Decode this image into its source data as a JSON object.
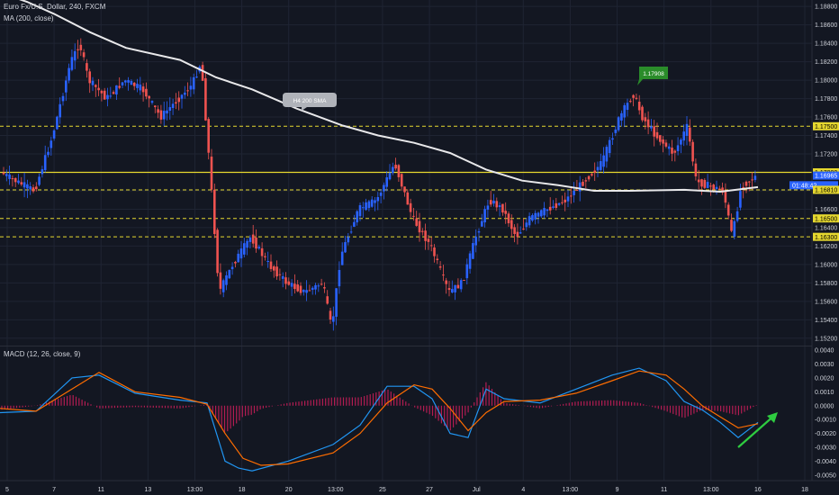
{
  "header": {
    "symbol_title": "Euro Fx/U.S. Dollar, 240, FXCM",
    "ma_label": "MA (200, close)",
    "macd_label": "MACD (12, 26, close, 9)"
  },
  "annotations": {
    "sma_callout": "H4 200 SMA",
    "high_callout": "1.17908"
  },
  "price_axis": {
    "ticks": [
      "1.18800",
      "1.18600",
      "1.18400",
      "1.18200",
      "1.18000",
      "1.17800",
      "1.17600",
      "1.17400",
      "1.17200",
      "1.17000",
      "1.16800",
      "1.16600",
      "1.16400",
      "1.16200",
      "1.16000",
      "1.15800",
      "1.15600",
      "1.15400",
      "1.15200"
    ],
    "tick_values": [
      1.188,
      1.186,
      1.184,
      1.182,
      1.18,
      1.178,
      1.176,
      1.174,
      1.172,
      1.17,
      1.168,
      1.166,
      1.164,
      1.162,
      1.16,
      1.158,
      1.156,
      1.154,
      1.152
    ],
    "tags": [
      {
        "label": "1.17500",
        "value": 1.175,
        "style": "yellow"
      },
      {
        "label": "1.17000",
        "value": 1.17,
        "style": "yellow"
      },
      {
        "label": "1.16965",
        "value": 1.16965,
        "style": "price"
      },
      {
        "label": "01:48:42",
        "value": 1.1686,
        "style": "timer"
      },
      {
        "label": "1.16810",
        "value": 1.1681,
        "style": "yellow"
      },
      {
        "label": "1.16500",
        "value": 1.165,
        "style": "yellow"
      },
      {
        "label": "1.16300",
        "value": 1.163,
        "style": "yellow"
      }
    ]
  },
  "macd_axis": {
    "ticks": [
      "0.0040",
      "0.0030",
      "0.0020",
      "0.0010",
      "0.0000",
      "-0.0010",
      "-0.0020",
      "-0.0030",
      "-0.0040",
      "-0.0050"
    ],
    "tick_values": [
      0.004,
      0.003,
      0.002,
      0.001,
      0.0,
      -0.001,
      -0.002,
      -0.003,
      -0.004,
      -0.005
    ]
  },
  "time_axis": {
    "labels": [
      "5",
      "7",
      "11",
      "13",
      "13:00",
      "18",
      "20",
      "13:00",
      "25",
      "27",
      "Jul",
      "4",
      "13:00",
      "9",
      "11",
      "13:00",
      "16",
      "18"
    ]
  },
  "chart_data": {
    "type": "line",
    "price_ylim": [
      1.1512,
      1.1887
    ],
    "macd_ylim": [
      -0.0054,
      0.0042
    ],
    "horizontal_levels": [
      1.175,
      1.17,
      1.1681,
      1.165,
      1.163
    ],
    "solid_level": 1.17,
    "high_marker": 1.17908,
    "series": [
      {
        "name": "MA (200, close)",
        "x": [
          0,
          30,
          60,
          100,
          140,
          200,
          240,
          280,
          330,
          380,
          420,
          460,
          500,
          540,
          580,
          620,
          660,
          700,
          760,
          800,
          842
        ],
        "values": [
          1.1895,
          1.1885,
          1.1872,
          1.1852,
          1.1835,
          1.1822,
          1.1803,
          1.179,
          1.1769,
          1.1751,
          1.174,
          1.1732,
          1.1721,
          1.1703,
          1.1691,
          1.1686,
          1.168,
          1.168,
          1.1681,
          1.1679,
          1.1684
        ]
      },
      {
        "name": "Price",
        "x": [
          2,
          20,
          40,
          60,
          80,
          90,
          100,
          120,
          140,
          160,
          180,
          200,
          215,
          225,
          235,
          245,
          260,
          280,
          300,
          320,
          340,
          360,
          370,
          380,
          400,
          420,
          440,
          450,
          460,
          480,
          500,
          515,
          530,
          545,
          560,
          575,
          590,
          610,
          630,
          650,
          670,
          690,
          705,
          715,
          730,
          750,
          765,
          775,
          790,
          805,
          815,
          825,
          842
        ],
        "values": [
          1.17,
          1.169,
          1.168,
          1.174,
          1.182,
          1.184,
          1.18,
          1.178,
          1.18,
          1.179,
          1.176,
          1.178,
          1.1795,
          1.182,
          1.17,
          1.157,
          1.16,
          1.163,
          1.16,
          1.158,
          1.157,
          1.158,
          1.153,
          1.161,
          1.166,
          1.167,
          1.171,
          1.168,
          1.165,
          1.162,
          1.157,
          1.158,
          1.163,
          1.167,
          1.166,
          1.163,
          1.165,
          1.166,
          1.167,
          1.169,
          1.171,
          1.176,
          1.1785,
          1.176,
          1.174,
          1.172,
          1.175,
          1.169,
          1.1685,
          1.168,
          1.163,
          1.1685,
          1.1696
        ]
      },
      {
        "name": "MACD",
        "x": [
          0,
          40,
          80,
          110,
          150,
          200,
          230,
          250,
          265,
          280,
          320,
          370,
          400,
          430,
          460,
          480,
          500,
          520,
          540,
          560,
          600,
          640,
          680,
          710,
          740,
          760,
          780,
          800,
          820,
          842
        ],
        "values": [
          -0.0005,
          -0.0004,
          0.002,
          0.0022,
          0.0009,
          0.0004,
          0.0002,
          -0.004,
          -0.0045,
          -0.0047,
          -0.004,
          -0.0028,
          -0.0014,
          0.0014,
          0.0014,
          0.0005,
          -0.002,
          -0.0023,
          0.0012,
          0.0005,
          0.0002,
          0.0012,
          0.0022,
          0.0027,
          0.0018,
          0.0003,
          -0.0003,
          -0.0012,
          -0.0023,
          -0.0012
        ]
      },
      {
        "name": "Signal",
        "x": [
          0,
          40,
          80,
          110,
          150,
          200,
          230,
          250,
          270,
          290,
          320,
          370,
          400,
          430,
          460,
          480,
          500,
          520,
          540,
          560,
          600,
          640,
          680,
          710,
          740,
          760,
          780,
          800,
          820,
          842
        ],
        "values": [
          -0.0002,
          -0.0004,
          0.0012,
          0.0024,
          0.001,
          0.0006,
          0.0001,
          -0.002,
          -0.0038,
          -0.0043,
          -0.0042,
          -0.0034,
          -0.002,
          0.0002,
          0.0015,
          0.0012,
          -0.0002,
          -0.0018,
          -0.0005,
          0.0003,
          0.0004,
          0.0009,
          0.0018,
          0.0025,
          0.0022,
          0.0012,
          0.0,
          -0.0008,
          -0.0016,
          -0.0013
        ]
      }
    ]
  },
  "colors": {
    "background": "#131722",
    "grid": "#1f2433",
    "up_candle": "#2962ff",
    "down_candle": "#ef5350",
    "ma_line": "#e8e8ea",
    "level_line": "#e6d82f",
    "macd_line": "#2196f3",
    "signal_line": "#ff6d00",
    "histogram": "#e91e63",
    "arrow": "#2ecc40",
    "high_tag": "#2a8c2a"
  }
}
